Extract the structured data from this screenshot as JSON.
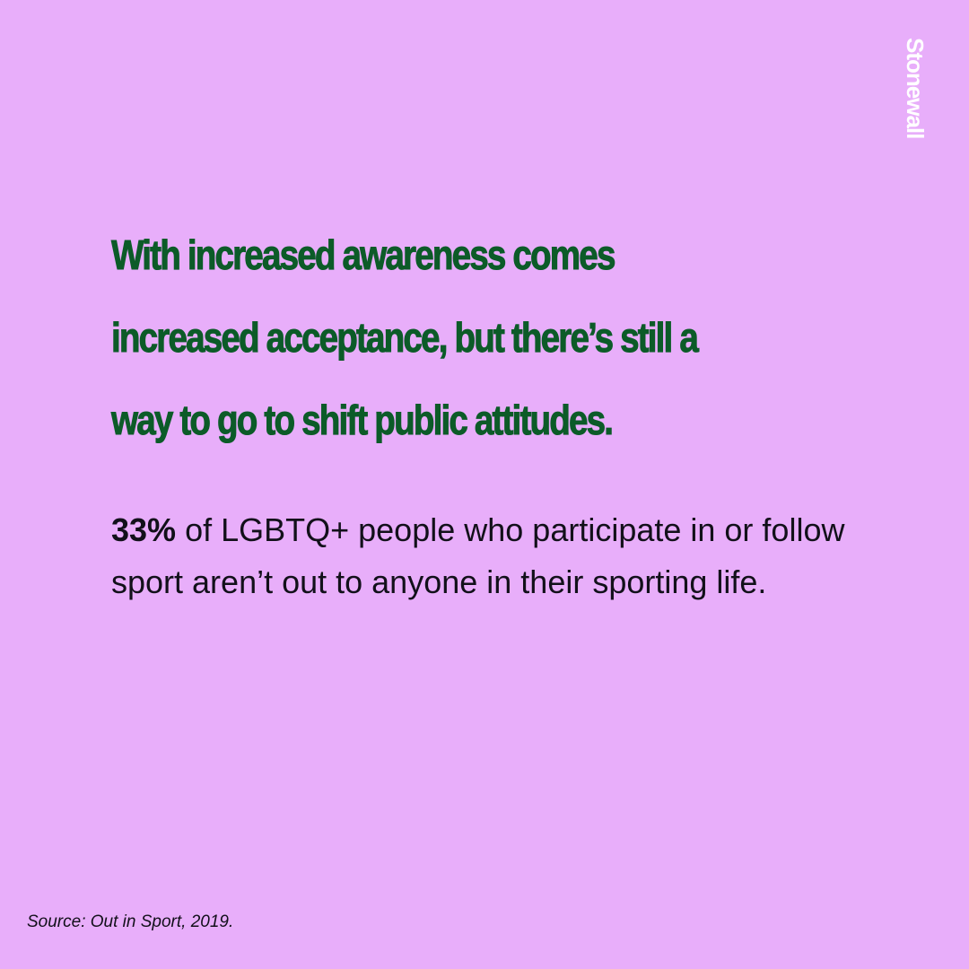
{
  "brand": {
    "logo_text": "Stonewall"
  },
  "headline": "With increased awareness comes increased acceptance, but there’s still a way to go to shift public attitudes.",
  "stat": {
    "figure": "33%",
    "text": " of LGBTQ+ people who participate in or follow sport aren’t out to anyone in their sporting life."
  },
  "source": "Source: Out in Sport, 2019.",
  "colors": {
    "background": "#e8aefa",
    "headline": "#0c5b28",
    "body_text": "#12101a",
    "logo": "#ffffff"
  }
}
